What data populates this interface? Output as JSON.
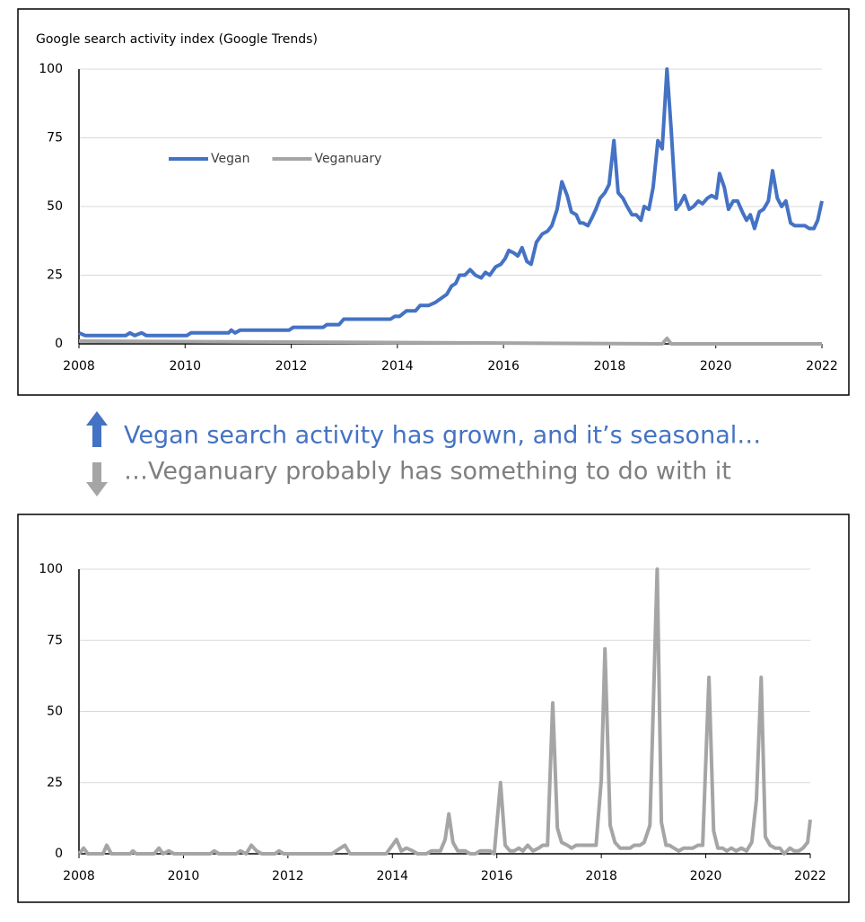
{
  "chart_data": [
    {
      "type": "line",
      "title": "Google search activity index (Google Trends)",
      "xlim": [
        2008,
        2022
      ],
      "xticks": [
        2008,
        2010,
        2012,
        2014,
        2016,
        2018,
        2020,
        2022
      ],
      "ylim": [
        0,
        100
      ],
      "yticks": [
        0,
        25,
        50,
        75,
        100
      ],
      "grid": true,
      "legend": "upper left",
      "series": [
        {
          "name": "Vegan",
          "color": "#4472c4",
          "x": [
            2008.0,
            2008.12,
            2008.88,
            2008.96,
            2009.05,
            2009.18,
            2009.27,
            2010.03,
            2010.11,
            2010.82,
            2010.87,
            2010.94,
            2011.04,
            2011.96,
            2012.04,
            2012.6,
            2012.67,
            2012.9,
            2012.99,
            2013.87,
            2013.95,
            2014.04,
            2014.17,
            2014.34,
            2014.43,
            2014.59,
            2014.71,
            2014.93,
            2015.02,
            2015.1,
            2015.17,
            2015.27,
            2015.37,
            2015.47,
            2015.58,
            2015.66,
            2015.74,
            2015.85,
            2015.95,
            2016.03,
            2016.1,
            2016.2,
            2016.27,
            2016.35,
            2016.44,
            2016.52,
            2016.62,
            2016.73,
            2016.83,
            2016.91,
            2017.01,
            2017.1,
            2017.2,
            2017.28,
            2017.37,
            2017.44,
            2017.5,
            2017.59,
            2017.67,
            2017.74,
            2017.82,
            2017.91,
            2017.99,
            2018.08,
            2018.16,
            2018.25,
            2018.33,
            2018.42,
            2018.5,
            2018.59,
            2018.65,
            2018.74,
            2018.82,
            2018.91,
            2018.99,
            2019.08,
            2019.16,
            2019.25,
            2019.33,
            2019.41,
            2019.5,
            2019.58,
            2019.67,
            2019.75,
            2019.84,
            2019.92,
            2020.01,
            2020.07,
            2020.16,
            2020.24,
            2020.33,
            2020.41,
            2020.5,
            2020.58,
            2020.65,
            2020.73,
            2020.82,
            2020.9,
            2020.99,
            2021.07,
            2021.16,
            2021.24,
            2021.32,
            2021.41,
            2021.49,
            2021.59,
            2021.68,
            2021.76,
            2021.85,
            2021.92,
            2022.0
          ],
          "values": [
            4,
            3,
            3,
            4,
            3,
            4,
            3,
            3,
            4,
            4,
            5,
            4,
            5,
            5,
            6,
            6,
            7,
            7,
            9,
            9,
            10,
            10,
            12,
            12,
            14,
            14,
            15,
            18,
            21,
            22,
            25,
            25,
            27,
            25,
            24,
            26,
            25,
            28,
            29,
            31,
            34,
            33,
            32,
            35,
            30,
            29,
            37,
            40,
            41,
            43,
            49,
            59,
            54,
            48,
            47,
            44,
            44,
            43,
            46,
            49,
            53,
            55,
            58,
            74,
            55,
            53,
            50,
            47,
            47,
            45,
            50,
            49,
            57,
            74,
            71,
            100,
            78,
            49,
            51,
            54,
            49,
            50,
            52,
            51,
            53,
            54,
            53,
            62,
            57,
            49,
            52,
            52,
            48,
            45,
            47,
            42,
            48,
            49,
            52,
            63,
            53,
            50,
            52,
            44,
            43,
            43,
            43,
            42,
            42,
            45,
            52
          ]
        },
        {
          "name": "Veganuary",
          "color": "#a5a5a5",
          "x": [
            2008.0,
            2018.99,
            2019.08,
            2019.16,
            2022.0
          ],
          "values": [
            1,
            0,
            2,
            0,
            0
          ]
        }
      ]
    },
    {
      "type": "line",
      "xlim": [
        2008,
        2022
      ],
      "xticks": [
        2008,
        2010,
        2012,
        2014,
        2016,
        2018,
        2020,
        2022
      ],
      "ylim": [
        0,
        100
      ],
      "yticks": [
        0,
        25,
        50,
        75,
        100
      ],
      "grid": true,
      "series": [
        {
          "color": "#a5a5a5",
          "x": [
            2008.0,
            2008.09,
            2008.17,
            2008.46,
            2008.53,
            2008.62,
            2008.98,
            2009.03,
            2009.1,
            2009.44,
            2009.53,
            2009.61,
            2009.72,
            2009.82,
            2010.51,
            2010.59,
            2010.68,
            2011.01,
            2011.09,
            2011.2,
            2011.3,
            2011.4,
            2011.5,
            2011.75,
            2011.83,
            2011.92,
            2012.84,
            2013.09,
            2013.19,
            2013.88,
            2014.0,
            2014.08,
            2014.17,
            2014.27,
            2014.39,
            2014.48,
            2014.65,
            2014.75,
            2014.92,
            2015.01,
            2015.08,
            2015.16,
            2015.25,
            2015.39,
            2015.49,
            2015.59,
            2015.68,
            2015.87,
            2015.95,
            2016.07,
            2016.16,
            2016.25,
            2016.33,
            2016.42,
            2016.5,
            2016.59,
            2016.69,
            2016.8,
            2016.88,
            2016.97,
            2017.07,
            2017.16,
            2017.24,
            2017.35,
            2017.43,
            2017.52,
            2017.62,
            2017.71,
            2017.79,
            2017.9,
            2018.0,
            2018.07,
            2018.17,
            2018.26,
            2018.36,
            2018.45,
            2018.55,
            2018.63,
            2018.74,
            2018.82,
            2018.93,
            2019.07,
            2019.15,
            2019.24,
            2019.3,
            2019.39,
            2019.48,
            2019.58,
            2019.66,
            2019.75,
            2019.85,
            2019.94,
            2020.06,
            2020.15,
            2020.23,
            2020.32,
            2020.4,
            2020.49,
            2020.58,
            2020.68,
            2020.78,
            2020.88,
            2020.97,
            2021.06,
            2021.14,
            2021.23,
            2021.33,
            2021.42,
            2021.5,
            2021.61,
            2021.69,
            2021.78,
            2021.86,
            2021.95,
            2022.0
          ],
          "values": [
            0,
            2,
            0,
            0,
            3,
            0,
            0,
            1,
            0,
            0,
            2,
            0,
            1,
            0,
            0,
            1,
            0,
            0,
            1,
            0,
            3,
            1,
            0,
            0,
            1,
            0,
            0,
            3,
            0,
            0,
            3,
            5,
            1,
            2,
            1,
            0,
            0,
            1,
            1,
            5,
            14,
            4,
            1,
            1,
            0,
            0,
            1,
            1,
            0,
            25,
            3,
            1,
            1,
            2,
            1,
            3,
            1,
            2,
            3,
            3,
            53,
            9,
            4,
            3,
            2,
            3,
            3,
            3,
            3,
            3,
            26,
            72,
            10,
            4,
            2,
            2,
            2,
            3,
            3,
            4,
            10,
            100,
            11,
            3,
            3,
            2,
            1,
            2,
            2,
            2,
            3,
            3,
            62,
            8,
            2,
            2,
            1,
            2,
            1,
            2,
            1,
            4,
            19,
            62,
            6,
            3,
            2,
            2,
            0,
            2,
            1,
            1,
            2,
            4,
            12
          ]
        }
      ]
    }
  ],
  "notes": [
    "Vegan search activity has grown, and it’s seasonal…",
    "…Veganuary probably has something to do with it"
  ]
}
